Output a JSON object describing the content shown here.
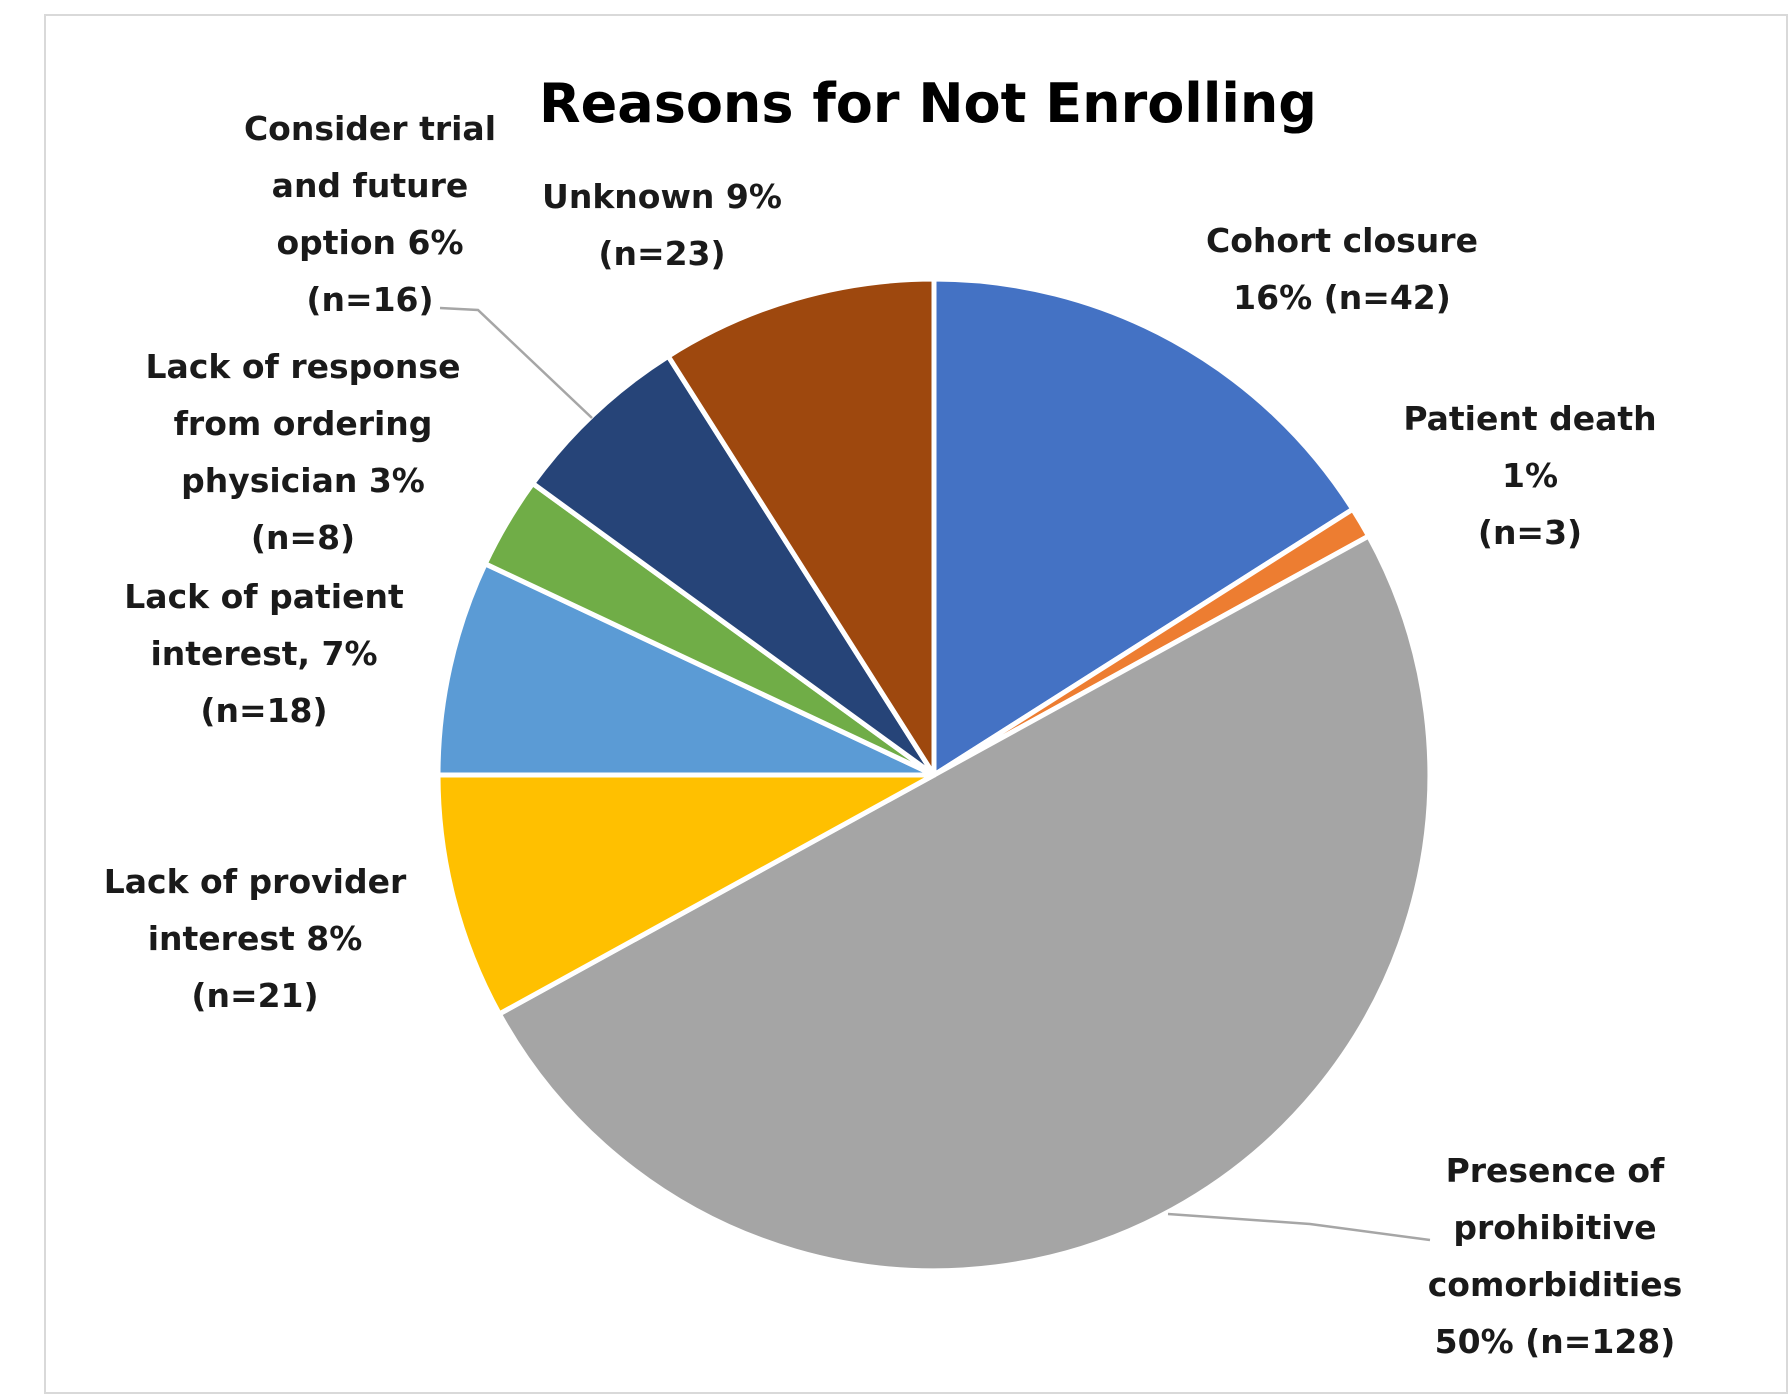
{
  "chart_data": {
    "type": "pie",
    "title": "Reasons for Not Enrolling",
    "start_angle_deg": 0,
    "direction": "clockwise",
    "slices": [
      {
        "name": "Cohort closure",
        "percent": 16,
        "n": 42,
        "color": "#4472C4",
        "label_lines": [
          "Cohort closure",
          "16% (n=42)"
        ]
      },
      {
        "name": "Patient death",
        "percent": 1,
        "n": 3,
        "color": "#ED7D31",
        "label_lines": [
          "Patient death",
          "1%",
          "(n=3)"
        ]
      },
      {
        "name": "Presence of prohibitive comorbidities",
        "percent": 50,
        "n": 128,
        "color": "#A5A5A5",
        "label_lines": [
          "Presence of",
          "prohibitive",
          "comorbidities",
          "50% (n=128)"
        ]
      },
      {
        "name": "Lack of provider interest",
        "percent": 8,
        "n": 21,
        "color": "#FFC000",
        "label_lines": [
          "Lack of provider",
          "interest  8%",
          "(n=21)"
        ]
      },
      {
        "name": "Lack of patient interest",
        "percent": 7,
        "n": 18,
        "color": "#5B9BD5",
        "label_lines": [
          "Lack of patient",
          "interest, 7%",
          "(n=18)"
        ]
      },
      {
        "name": "Lack of response from ordering physician",
        "percent": 3,
        "n": 8,
        "color": "#70AD47",
        "label_lines": [
          "Lack of response",
          "from ordering",
          "physician 3%",
          "(n=8)"
        ]
      },
      {
        "name": "Consider trial and future option",
        "percent": 6,
        "n": 16,
        "color": "#264478",
        "label_lines": [
          "Consider trial",
          "and future",
          "option 6%",
          "(n=16)"
        ]
      },
      {
        "name": "Unknown",
        "percent": 9,
        "n": 23,
        "color": "#9E480E",
        "label_lines": [
          "Unknown 9%",
          "(n=23)"
        ]
      }
    ]
  }
}
